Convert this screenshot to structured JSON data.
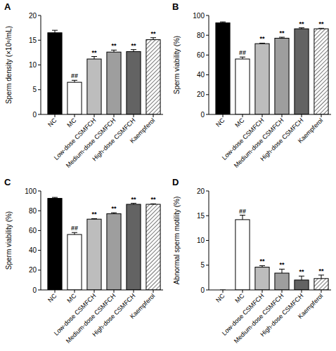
{
  "chart_data": [
    {
      "type": "bar",
      "title": "A",
      "ylabel": "Sperm density (×10⁶/mL)",
      "categories": [
        "NC",
        "MC",
        "Low-dose CSMFCH",
        "Medium-dose CSMFCH",
        "High-dose CSMFCH",
        "Kaempferol"
      ],
      "values": [
        16.5,
        6.5,
        11.2,
        12.6,
        12.7,
        15.1
      ],
      "errors": [
        0.5,
        0.4,
        0.5,
        0.4,
        0.4,
        0.4
      ],
      "colors": [
        "#000000",
        "#ffffff",
        "#bdbdbd",
        "#9e9e9e",
        "#636363",
        "#ffffff"
      ],
      "ylim": [
        0,
        20
      ],
      "yticks": [
        0,
        5,
        10,
        15,
        20
      ],
      "grid": false,
      "annotations": [
        {
          "x": "MC",
          "text": "##"
        },
        {
          "x": "Low-dose CSMFCH",
          "text": "**"
        },
        {
          "x": "Medium-dose CSMFCH",
          "text": "**"
        },
        {
          "x": "High-dose CSMFCH",
          "text": "**"
        },
        {
          "x": "Kaempferol",
          "text": "**"
        }
      ]
    },
    {
      "type": "bar",
      "title": "B",
      "ylabel": "Sperm viability (%)",
      "categories": [
        "NC",
        "MC",
        "Low-dose CSMFCH",
        "Medium-dose CSMFCH",
        "High-dose CSMFCH",
        "Kaempferol"
      ],
      "values": [
        92.5,
        56,
        71.5,
        77,
        86.5,
        86.5
      ],
      "errors": [
        1,
        2,
        0.5,
        1,
        1,
        0.5
      ],
      "colors": [
        "#000000",
        "#ffffff",
        "#bdbdbd",
        "#9e9e9e",
        "#636363",
        "#ffffff"
      ],
      "ylim": [
        0,
        100
      ],
      "yticks": [
        0,
        20,
        40,
        60,
        80,
        100
      ],
      "grid": false,
      "annotations": [
        {
          "x": "MC",
          "text": "##"
        },
        {
          "x": "Low-dose CSMFCH",
          "text": "**"
        },
        {
          "x": "Medium-dose CSMFCH",
          "text": "**"
        },
        {
          "x": "High-dose CSMFCH",
          "text": "**"
        },
        {
          "x": "Kaempferol",
          "text": "**"
        }
      ]
    },
    {
      "type": "bar",
      "title": "C",
      "ylabel": "Sperm viability (%)",
      "categories": [
        "NC",
        "MC",
        "Low-dose CSMFCH",
        "Medium-dose CSMFCH",
        "High-dose CSMFCH",
        "Kaempferol"
      ],
      "values": [
        92.5,
        56,
        71.5,
        77,
        86.5,
        86.5
      ],
      "errors": [
        1,
        2,
        0.5,
        1,
        1,
        0.5
      ],
      "colors": [
        "#000000",
        "#ffffff",
        "#bdbdbd",
        "#9e9e9e",
        "#636363",
        "#ffffff"
      ],
      "ylim": [
        0,
        100
      ],
      "yticks": [
        0,
        20,
        40,
        60,
        80,
        100
      ],
      "grid": false,
      "annotations": [
        {
          "x": "MC",
          "text": "##"
        },
        {
          "x": "Low-dose CSMFCH",
          "text": "**"
        },
        {
          "x": "Medium-dose CSMFCH",
          "text": "**"
        },
        {
          "x": "High-dose CSMFCH",
          "text": "**"
        },
        {
          "x": "Kaempferol",
          "text": "**"
        }
      ]
    },
    {
      "type": "bar",
      "title": "D",
      "ylabel": "Abnormal sperm motility (%)",
      "categories": [
        "NC",
        "MC",
        "Low-dose CSMFCH",
        "Medium-dose CSMFCH",
        "High-dose CSMFCH",
        "Kaempferol"
      ],
      "values": [
        0,
        14.2,
        4.6,
        3.4,
        2.0,
        2.3
      ],
      "errors": [
        0,
        0.9,
        0.3,
        0.8,
        0.8,
        0.7
      ],
      "colors": [
        "#000000",
        "#ffffff",
        "#bdbdbd",
        "#9e9e9e",
        "#636363",
        "#ffffff"
      ],
      "ylim": [
        0,
        20
      ],
      "yticks": [
        0,
        5,
        10,
        15,
        20
      ],
      "grid": false,
      "annotations": [
        {
          "x": "MC",
          "text": "##"
        },
        {
          "x": "Low-dose CSMFCH",
          "text": "**"
        },
        {
          "x": "Medium-dose CSMFCH",
          "text": "**"
        },
        {
          "x": "High-dose CSMFCH",
          "text": "**"
        },
        {
          "x": "Kaempferol",
          "text": "**"
        }
      ]
    }
  ]
}
